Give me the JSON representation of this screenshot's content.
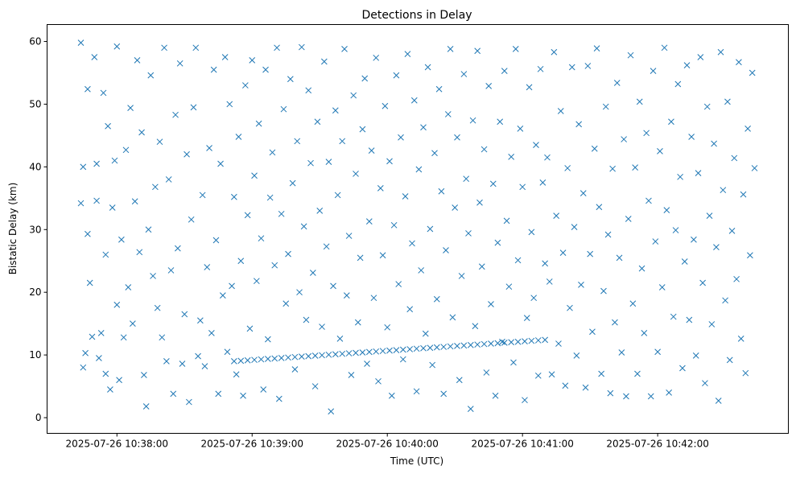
{
  "chart_data": {
    "type": "scatter",
    "title": "Detections in Delay",
    "xlabel": "Time (UTC)",
    "ylabel": "Bistatic Delay (km)",
    "x_units": "seconds since 2025-07-26 10:37:00",
    "xlim": [
      29,
      358
    ],
    "ylim": [
      -2.5,
      62.7
    ],
    "grid": false,
    "marker": "x",
    "color": "#1f77b4",
    "xticks": [
      {
        "value": 60,
        "label": "2025-07-26 10:38:00"
      },
      {
        "value": 120,
        "label": "2025-07-26 10:39:00"
      },
      {
        "value": 180,
        "label": "2025-07-26 10:40:00"
      },
      {
        "value": 240,
        "label": "2025-07-26 10:41:00"
      },
      {
        "value": 300,
        "label": "2025-07-26 10:42:00"
      }
    ],
    "yticks": [
      {
        "value": 0,
        "label": "0"
      },
      {
        "value": 10,
        "label": "10"
      },
      {
        "value": 20,
        "label": "20"
      },
      {
        "value": 30,
        "label": "30"
      },
      {
        "value": 40,
        "label": "40"
      },
      {
        "value": 50,
        "label": "50"
      },
      {
        "value": 60,
        "label": "60"
      }
    ],
    "track_points": [
      [
        112,
        9.0
      ],
      [
        115,
        9.07
      ],
      [
        118,
        9.15
      ],
      [
        121,
        9.22
      ],
      [
        124,
        9.3
      ],
      [
        127,
        9.37
      ],
      [
        130,
        9.44
      ],
      [
        133,
        9.52
      ],
      [
        136,
        9.59
      ],
      [
        139,
        9.67
      ],
      [
        142,
        9.74
      ],
      [
        145,
        9.81
      ],
      [
        148,
        9.89
      ],
      [
        151,
        9.96
      ],
      [
        154,
        10.04
      ],
      [
        157,
        10.11
      ],
      [
        160,
        10.18
      ],
      [
        163,
        10.26
      ],
      [
        166,
        10.33
      ],
      [
        169,
        10.4
      ],
      [
        172,
        10.48
      ],
      [
        175,
        10.55
      ],
      [
        178,
        10.63
      ],
      [
        181,
        10.7
      ],
      [
        184,
        10.77
      ],
      [
        187,
        10.85
      ],
      [
        190,
        10.92
      ],
      [
        193,
        11.0
      ],
      [
        196,
        11.07
      ],
      [
        199,
        11.14
      ],
      [
        202,
        11.22
      ],
      [
        205,
        11.29
      ],
      [
        208,
        11.37
      ],
      [
        211,
        11.44
      ],
      [
        214,
        11.51
      ],
      [
        217,
        11.59
      ],
      [
        220,
        11.66
      ],
      [
        223,
        11.74
      ],
      [
        226,
        11.81
      ],
      [
        229,
        11.88
      ],
      [
        232,
        11.96
      ],
      [
        235,
        12.03
      ],
      [
        238,
        12.1
      ],
      [
        241,
        12.18
      ],
      [
        244,
        12.25
      ],
      [
        247,
        12.33
      ],
      [
        250,
        12.4
      ]
    ],
    "clutter_points": [
      [
        44,
        59.8
      ],
      [
        44,
        34.2
      ],
      [
        45,
        40
      ],
      [
        45,
        8
      ],
      [
        46,
        10.3
      ],
      [
        47,
        29.3
      ],
      [
        47,
        52.4
      ],
      [
        48,
        21.5
      ],
      [
        49,
        12.9
      ],
      [
        50,
        57.5
      ],
      [
        51,
        40.5
      ],
      [
        51,
        34.6
      ],
      [
        52,
        9.5
      ],
      [
        53,
        13.5
      ],
      [
        54,
        51.8
      ],
      [
        55,
        26
      ],
      [
        55,
        7
      ],
      [
        56,
        46.5
      ],
      [
        57,
        4.5
      ],
      [
        58,
        33.5
      ],
      [
        59,
        41
      ],
      [
        60,
        18
      ],
      [
        60,
        59.2
      ],
      [
        61,
        6
      ],
      [
        62,
        28.4
      ],
      [
        63,
        12.8
      ],
      [
        64,
        42.7
      ],
      [
        65,
        20.8
      ],
      [
        66,
        49.4
      ],
      [
        67,
        15
      ],
      [
        68,
        34.5
      ],
      [
        69,
        57
      ],
      [
        70,
        26.4
      ],
      [
        71,
        45.5
      ],
      [
        72,
        6.8
      ],
      [
        73,
        1.8
      ],
      [
        74,
        30
      ],
      [
        75,
        54.6
      ],
      [
        76,
        22.6
      ],
      [
        77,
        36.8
      ],
      [
        78,
        17.5
      ],
      [
        79,
        44
      ],
      [
        80,
        12.8
      ],
      [
        81,
        59
      ],
      [
        82,
        9
      ],
      [
        83,
        38
      ],
      [
        84,
        23.5
      ],
      [
        85,
        3.8
      ],
      [
        86,
        48.3
      ],
      [
        87,
        27
      ],
      [
        88,
        56.5
      ],
      [
        89,
        8.6
      ],
      [
        90,
        16.5
      ],
      [
        91,
        42
      ],
      [
        92,
        2.5
      ],
      [
        93,
        31.6
      ],
      [
        94,
        49.5
      ],
      [
        95,
        59
      ],
      [
        96,
        9.8
      ],
      [
        97,
        15.5
      ],
      [
        98,
        35.5
      ],
      [
        99,
        8.2
      ],
      [
        100,
        24
      ],
      [
        101,
        43
      ],
      [
        102,
        13.5
      ],
      [
        103,
        55.5
      ],
      [
        104,
        28.3
      ],
      [
        105,
        3.8
      ],
      [
        106,
        40.5
      ],
      [
        107,
        19.5
      ],
      [
        108,
        57.5
      ],
      [
        109,
        10.5
      ],
      [
        110,
        50
      ],
      [
        111,
        21
      ],
      [
        112,
        35.2
      ],
      [
        113,
        6.9
      ],
      [
        114,
        44.8
      ],
      [
        115,
        25
      ],
      [
        116,
        3.5
      ],
      [
        117,
        53
      ],
      [
        118,
        32.3
      ],
      [
        119,
        14.2
      ],
      [
        120,
        57
      ],
      [
        121,
        38.6
      ],
      [
        122,
        21.8
      ],
      [
        123,
        46.9
      ],
      [
        124,
        28.6
      ],
      [
        125,
        4.5
      ],
      [
        126,
        55.5
      ],
      [
        127,
        12.5
      ],
      [
        128,
        35.1
      ],
      [
        129,
        42.3
      ],
      [
        130,
        24.3
      ],
      [
        131,
        59
      ],
      [
        132,
        3
      ],
      [
        133,
        32.5
      ],
      [
        134,
        49.2
      ],
      [
        135,
        18.2
      ],
      [
        136,
        26.1
      ],
      [
        137,
        54
      ],
      [
        138,
        37.4
      ],
      [
        139,
        7.7
      ],
      [
        140,
        44.1
      ],
      [
        141,
        20
      ],
      [
        142,
        59.1
      ],
      [
        143,
        30.5
      ],
      [
        144,
        15.6
      ],
      [
        145,
        52.2
      ],
      [
        146,
        40.6
      ],
      [
        147,
        23.1
      ],
      [
        148,
        5
      ],
      [
        149,
        47.2
      ],
      [
        150,
        33
      ],
      [
        151,
        14.5
      ],
      [
        152,
        56.8
      ],
      [
        153,
        27.3
      ],
      [
        154,
        40.8
      ],
      [
        155,
        1
      ],
      [
        156,
        21
      ],
      [
        157,
        49
      ],
      [
        158,
        35.5
      ],
      [
        159,
        12.6
      ],
      [
        160,
        44.1
      ],
      [
        161,
        58.8
      ],
      [
        162,
        19.5
      ],
      [
        163,
        29
      ],
      [
        164,
        6.8
      ],
      [
        165,
        51.4
      ],
      [
        166,
        38.9
      ],
      [
        167,
        15.2
      ],
      [
        168,
        25.5
      ],
      [
        169,
        46
      ],
      [
        170,
        54.1
      ],
      [
        171,
        8.6
      ],
      [
        172,
        31.3
      ],
      [
        173,
        42.6
      ],
      [
        174,
        19.1
      ],
      [
        175,
        57.4
      ],
      [
        176,
        5.8
      ],
      [
        177,
        36.6
      ],
      [
        178,
        25.9
      ],
      [
        179,
        49.7
      ],
      [
        180,
        14.4
      ],
      [
        181,
        40.9
      ],
      [
        182,
        3.5
      ],
      [
        183,
        30.7
      ],
      [
        184,
        54.6
      ],
      [
        185,
        21.3
      ],
      [
        186,
        44.7
      ],
      [
        187,
        9.3
      ],
      [
        188,
        35.3
      ],
      [
        189,
        58
      ],
      [
        190,
        17.3
      ],
      [
        191,
        27.8
      ],
      [
        192,
        50.6
      ],
      [
        193,
        4.2
      ],
      [
        194,
        39.6
      ],
      [
        195,
        23.5
      ],
      [
        196,
        46.3
      ],
      [
        197,
        13.4
      ],
      [
        198,
        55.9
      ],
      [
        199,
        30.1
      ],
      [
        200,
        8.4
      ],
      [
        201,
        42.2
      ],
      [
        202,
        18.9
      ],
      [
        203,
        52.4
      ],
      [
        204,
        36.1
      ],
      [
        205,
        3.8
      ],
      [
        206,
        26.7
      ],
      [
        207,
        48.4
      ],
      [
        208,
        58.8
      ],
      [
        209,
        16
      ],
      [
        210,
        33.5
      ],
      [
        211,
        44.7
      ],
      [
        212,
        6
      ],
      [
        213,
        22.6
      ],
      [
        214,
        54.8
      ],
      [
        215,
        38.1
      ],
      [
        216,
        29.4
      ],
      [
        217,
        1.4
      ],
      [
        218,
        47.4
      ],
      [
        219,
        14.6
      ],
      [
        220,
        58.5
      ],
      [
        221,
        34.3
      ],
      [
        222,
        24.1
      ],
      [
        223,
        42.8
      ],
      [
        224,
        7.2
      ],
      [
        225,
        52.9
      ],
      [
        226,
        18.1
      ],
      [
        227,
        37.3
      ],
      [
        228,
        3.5
      ],
      [
        229,
        27.9
      ],
      [
        230,
        47.2
      ],
      [
        231,
        12.1
      ],
      [
        232,
        55.3
      ],
      [
        233,
        31.4
      ],
      [
        234,
        20.9
      ],
      [
        235,
        41.6
      ],
      [
        236,
        8.8
      ],
      [
        237,
        58.8
      ],
      [
        238,
        25.1
      ],
      [
        239,
        46.1
      ],
      [
        240,
        36.8
      ],
      [
        241,
        2.8
      ],
      [
        242,
        15.9
      ],
      [
        243,
        52.7
      ],
      [
        244,
        29.6
      ],
      [
        245,
        19.1
      ],
      [
        246,
        43.5
      ],
      [
        247,
        6.7
      ],
      [
        248,
        55.6
      ],
      [
        249,
        37.5
      ],
      [
        250,
        24.6
      ],
      [
        251,
        41.5
      ],
      [
        252,
        21.7
      ],
      [
        253,
        6.9
      ],
      [
        254,
        58.3
      ],
      [
        255,
        32.2
      ],
      [
        256,
        11.8
      ],
      [
        257,
        48.9
      ],
      [
        258,
        26.3
      ],
      [
        259,
        5.1
      ],
      [
        260,
        39.8
      ],
      [
        261,
        17.5
      ],
      [
        262,
        55.9
      ],
      [
        263,
        30.4
      ],
      [
        264,
        9.9
      ],
      [
        265,
        46.8
      ],
      [
        266,
        21.2
      ],
      [
        267,
        35.8
      ],
      [
        268,
        4.8
      ],
      [
        269,
        56.1
      ],
      [
        270,
        26.1
      ],
      [
        271,
        13.7
      ],
      [
        272,
        42.9
      ],
      [
        273,
        58.9
      ],
      [
        274,
        33.6
      ],
      [
        275,
        7
      ],
      [
        276,
        20.2
      ],
      [
        277,
        49.6
      ],
      [
        278,
        29.2
      ],
      [
        279,
        3.9
      ],
      [
        280,
        39.7
      ],
      [
        281,
        15.2
      ],
      [
        282,
        53.4
      ],
      [
        283,
        25.5
      ],
      [
        284,
        10.4
      ],
      [
        285,
        44.4
      ],
      [
        286,
        3.4
      ],
      [
        287,
        31.7
      ],
      [
        288,
        57.8
      ],
      [
        289,
        18.2
      ],
      [
        290,
        39.9
      ],
      [
        291,
        7
      ],
      [
        292,
        50.4
      ],
      [
        293,
        23.8
      ],
      [
        294,
        13.5
      ],
      [
        295,
        45.4
      ],
      [
        296,
        34.6
      ],
      [
        297,
        3.4
      ],
      [
        298,
        55.3
      ],
      [
        299,
        28.1
      ],
      [
        300,
        10.5
      ],
      [
        301,
        42.5
      ],
      [
        302,
        20.8
      ],
      [
        303,
        59
      ],
      [
        304,
        33.1
      ],
      [
        305,
        4
      ],
      [
        306,
        47.2
      ],
      [
        307,
        16.1
      ],
      [
        308,
        29.9
      ],
      [
        309,
        53.2
      ],
      [
        310,
        38.4
      ],
      [
        311,
        7.9
      ],
      [
        312,
        24.9
      ],
      [
        313,
        56.2
      ],
      [
        314,
        15.6
      ],
      [
        315,
        44.8
      ],
      [
        316,
        28.4
      ],
      [
        317,
        9.9
      ],
      [
        318,
        39
      ],
      [
        319,
        57.5
      ],
      [
        320,
        21.5
      ],
      [
        321,
        5.5
      ],
      [
        322,
        49.6
      ],
      [
        323,
        32.2
      ],
      [
        324,
        14.9
      ],
      [
        325,
        43.7
      ],
      [
        326,
        27.2
      ],
      [
        327,
        2.7
      ],
      [
        328,
        58.3
      ],
      [
        329,
        36.3
      ],
      [
        330,
        18.7
      ],
      [
        331,
        50.4
      ],
      [
        332,
        9.2
      ],
      [
        333,
        29.8
      ],
      [
        334,
        41.4
      ],
      [
        335,
        22.1
      ],
      [
        336,
        56.7
      ],
      [
        337,
        12.6
      ],
      [
        338,
        35.6
      ],
      [
        339,
        7.1
      ],
      [
        340,
        46.1
      ],
      [
        341,
        25.9
      ],
      [
        342,
        55
      ],
      [
        343,
        39.8
      ]
    ]
  }
}
